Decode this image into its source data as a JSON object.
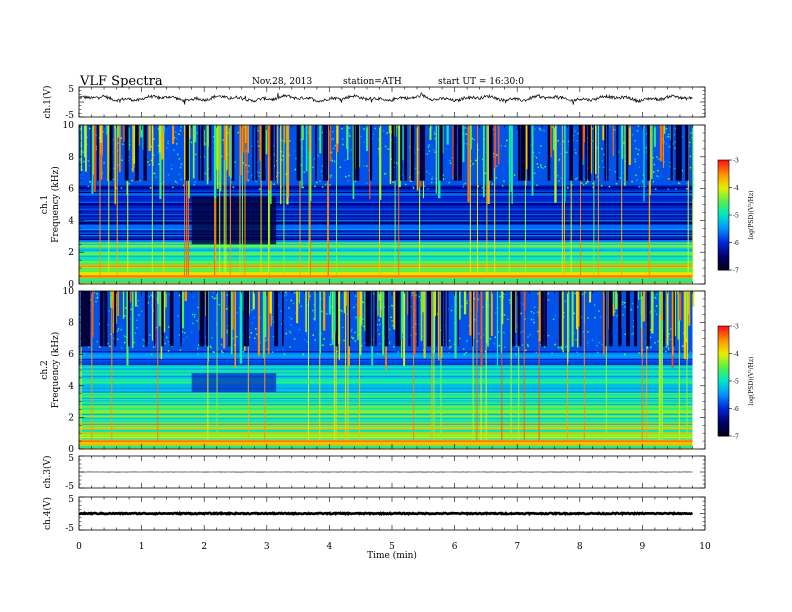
{
  "header": {
    "title": "VLF Spectra",
    "date": "Nov.28, 2013",
    "station": "station=ATH",
    "start_ut": "start  UT =  16:30:0"
  },
  "chart_data": [
    {
      "type": "line",
      "name": "ch1-waveform",
      "ylabel": "ch.1(V)",
      "ylim": [
        -5,
        5
      ],
      "yticks": [
        "5",
        "-5"
      ],
      "baseline": 1.2,
      "xlim": [
        0,
        10
      ]
    },
    {
      "type": "heatmap",
      "name": "ch1-spectrogram",
      "ylabel": "ch.1\nFrequency (kHz)",
      "ylabel_lines": [
        "ch.1",
        "Frequency (kHz)"
      ],
      "ylim": [
        0,
        10
      ],
      "yticks": [
        "0",
        "2",
        "4",
        "6",
        "8",
        "10"
      ],
      "xlim": [
        0,
        9.8
      ],
      "colorbar": {
        "label": "log(PSD)(V²/Hz)",
        "range": [
          -7,
          -3
        ],
        "ticks": [
          "-3",
          "-4",
          "-5",
          "-6",
          "-7"
        ]
      },
      "quiet_band_khz": [
        6,
        10
      ],
      "lines_band_khz": [
        0,
        5.5
      ],
      "darker_interval_min": [
        1.8,
        3.15
      ]
    },
    {
      "type": "heatmap",
      "name": "ch2-spectrogram",
      "ylabel": "ch.2\nFrequency (kHz)",
      "ylabel_lines": [
        "ch.2",
        "Frequency (kHz)"
      ],
      "ylim": [
        0,
        10
      ],
      "yticks": [
        "0",
        "2",
        "4",
        "6",
        "8",
        "10"
      ],
      "xlim": [
        0,
        9.8
      ],
      "colorbar": {
        "label": "log(PSD)(V²/Hz)",
        "range": [
          -7,
          -3
        ],
        "ticks": [
          "-3",
          "-4",
          "-5",
          "-6",
          "-7"
        ]
      }
    },
    {
      "type": "line",
      "name": "ch3-waveform",
      "ylabel": "ch.3(V)",
      "ylim": [
        -5,
        5
      ],
      "yticks": [
        "5",
        "-5"
      ],
      "baseline": 0
    },
    {
      "type": "line",
      "name": "ch4-waveform",
      "ylabel": "ch.4(V)",
      "ylim": [
        -5,
        5
      ],
      "yticks": [
        "5",
        "-5"
      ],
      "baseline": 0
    }
  ],
  "xaxis": {
    "label": "Time (min)",
    "ticks": [
      "0",
      "1",
      "2",
      "3",
      "4",
      "5",
      "6",
      "7",
      "8",
      "9",
      "10"
    ],
    "xlim": [
      0,
      10
    ]
  },
  "colors": {
    "spectro_low": "#000033",
    "spectro_high": "#ff0000",
    "trace": "#000000"
  }
}
